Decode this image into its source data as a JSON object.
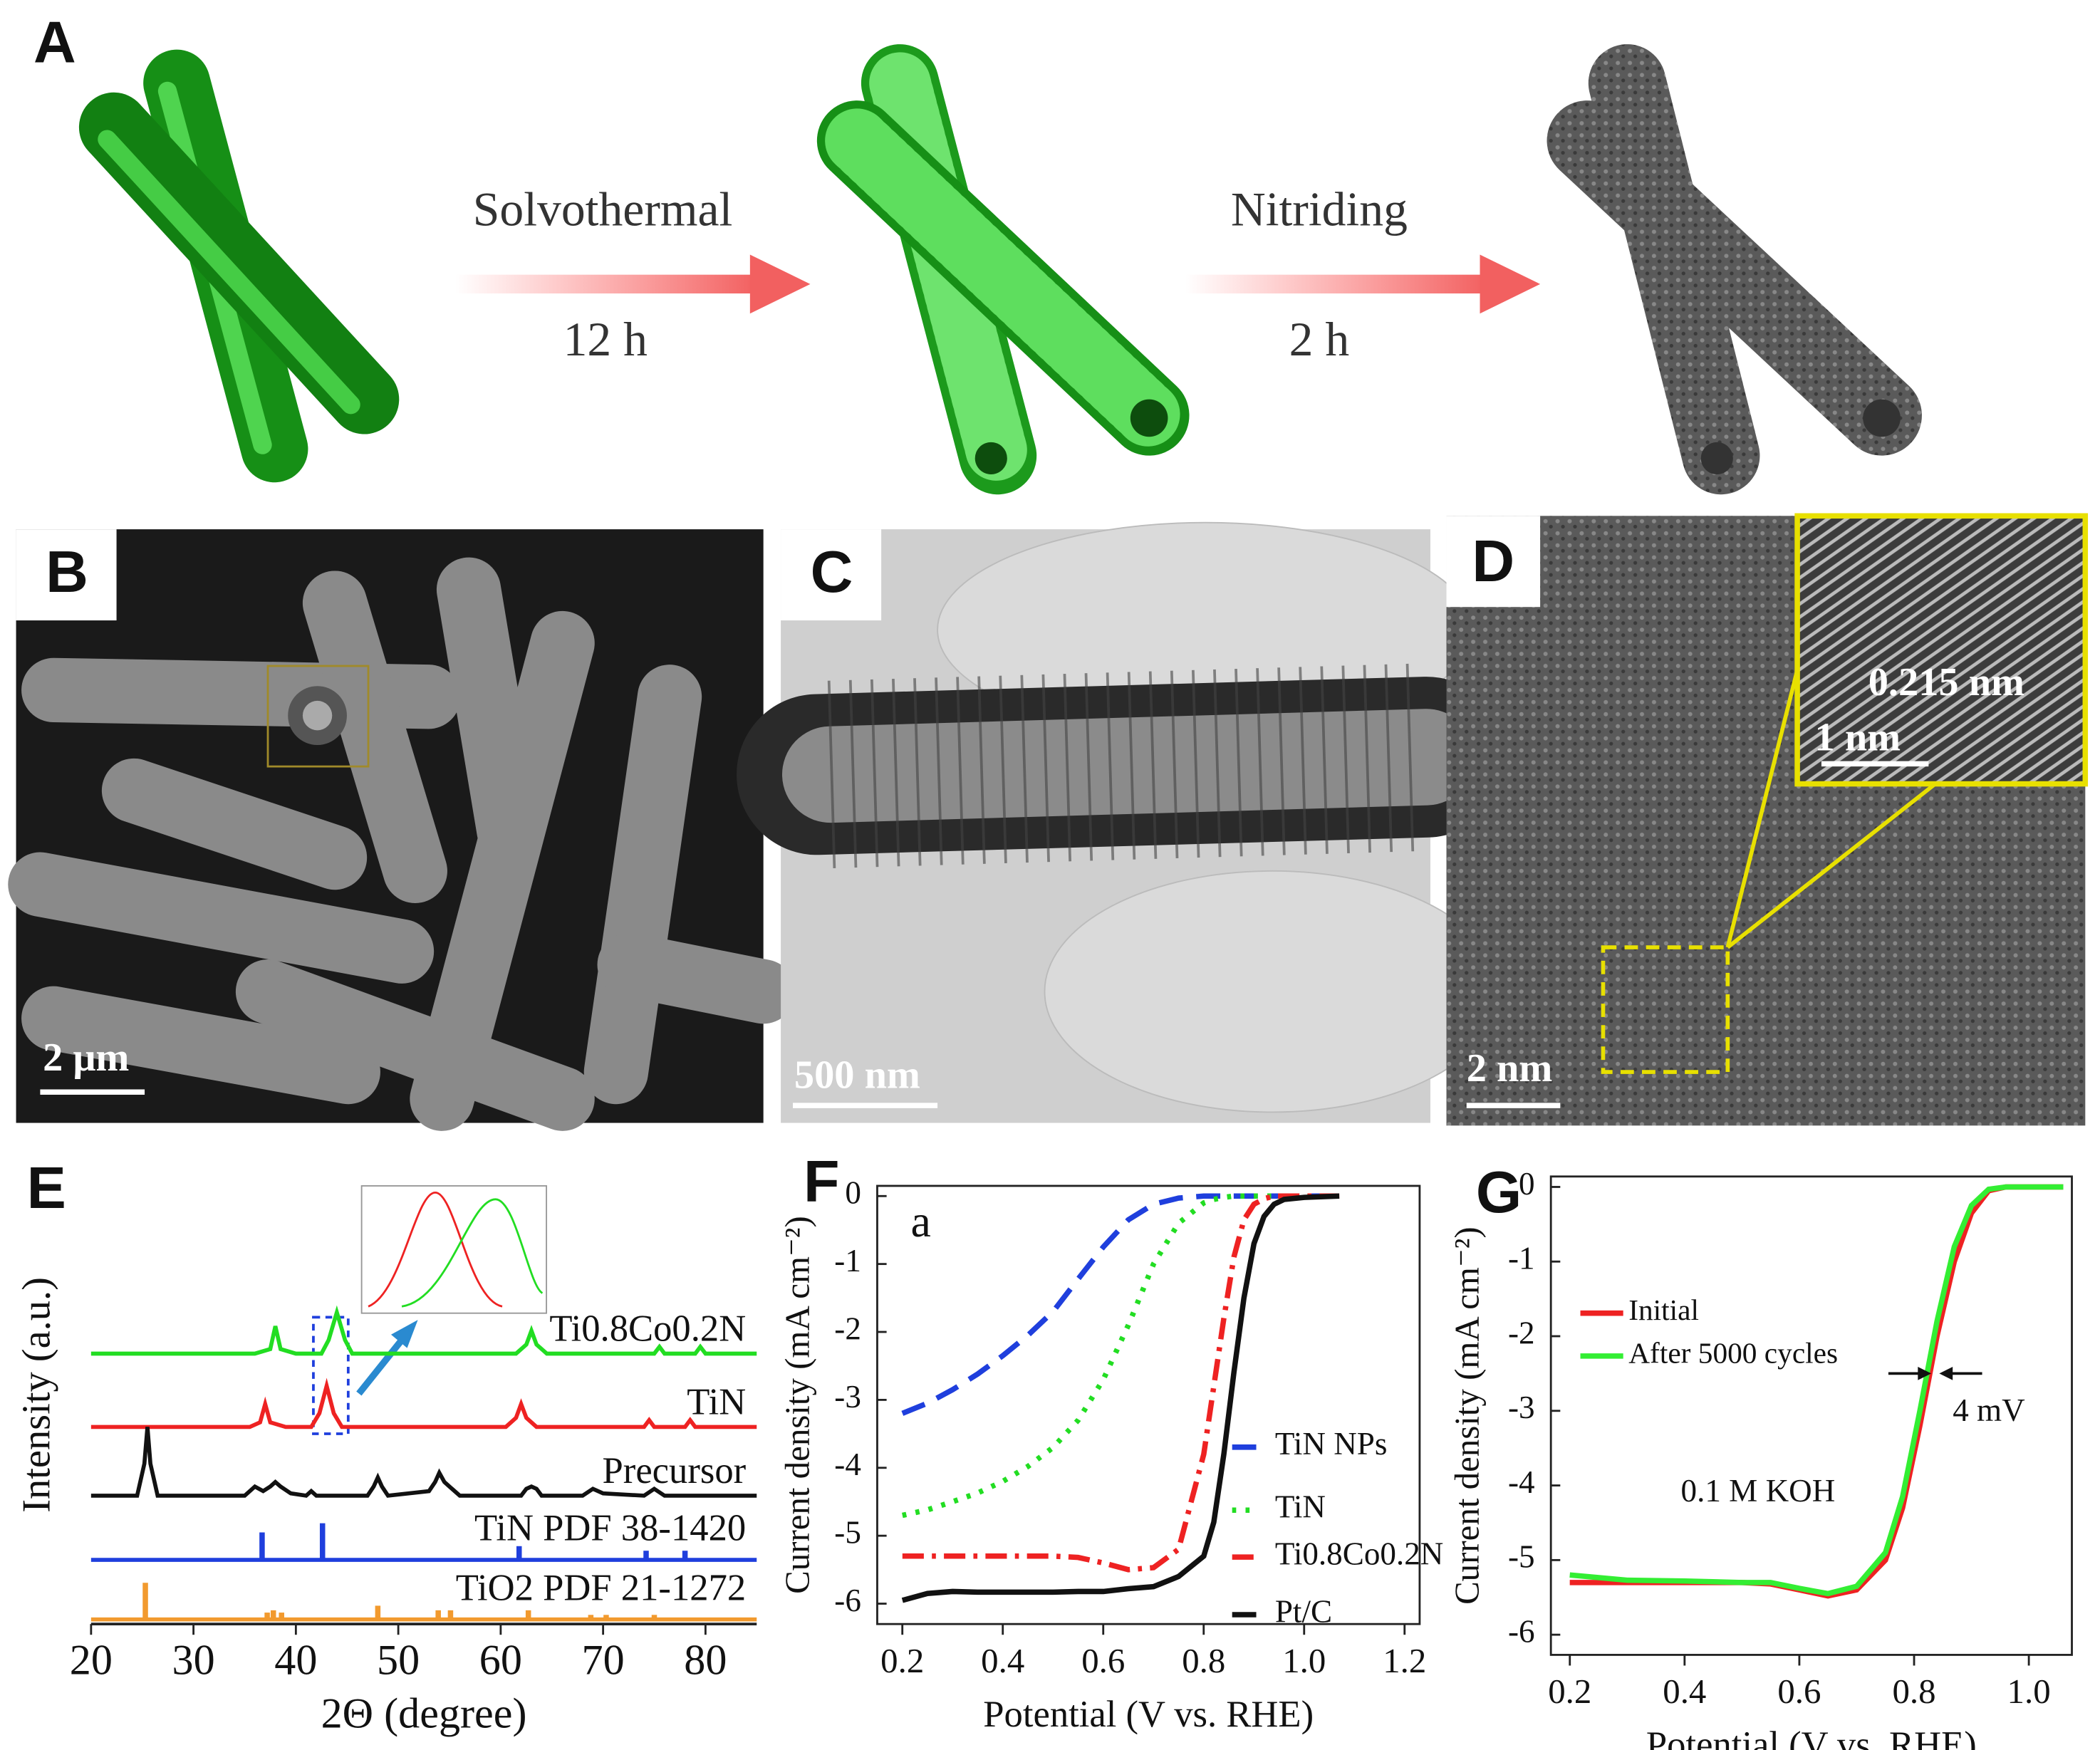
{
  "panels": {
    "A": {
      "label": "A",
      "step1": {
        "method": "Solvothermal",
        "time": "12 h"
      },
      "step2": {
        "method": "Nitriding",
        "time": "2 h"
      }
    },
    "B": {
      "label": "B",
      "scale_bar": "2 μm"
    },
    "C": {
      "label": "C",
      "scale_bar": "500 nm"
    },
    "D": {
      "label": "D",
      "scale_bar": "2 nm",
      "inset_spacing": "0.215 nm",
      "inset_scale_bar": "1 nm"
    }
  },
  "chart_data": [
    {
      "type": "line",
      "label": "E",
      "xlabel": "2Θ (degree)",
      "ylabel": "Intensity (a.u.)",
      "xlim": [
        20,
        85
      ],
      "xticks": [
        20,
        30,
        40,
        50,
        60,
        70,
        80
      ],
      "ylim": [
        0,
        100
      ],
      "series": [
        {
          "name": "Ti0.8Co0.2N",
          "color": "#22dd22",
          "style": "line",
          "x": [
            20,
            36,
            37.5,
            38,
            38.5,
            40,
            42.5,
            43.2,
            44,
            44.8,
            45.5,
            50,
            61.5,
            62.5,
            63,
            63.5,
            64.5,
            70,
            75,
            75.5,
            76,
            77,
            79,
            79.5,
            80,
            81,
            85
          ],
          "values": [
            59,
            59,
            60,
            65,
            60,
            59,
            59,
            62,
            68,
            62,
            59,
            59,
            59,
            61,
            64,
            61,
            59,
            59,
            59,
            60.5,
            59,
            59,
            59,
            60.5,
            59,
            59,
            59
          ]
        },
        {
          "name": "TiN",
          "color": "#ee2222",
          "style": "line",
          "x": [
            20,
            35.5,
            36.5,
            37,
            37.5,
            39,
            41.5,
            42.3,
            43,
            43.7,
            44.5,
            50,
            60.5,
            61.5,
            62,
            62.5,
            63.5,
            70,
            74,
            74.5,
            75,
            76,
            78,
            78.5,
            79,
            80,
            85
          ],
          "values": [
            43,
            43,
            44,
            48,
            44,
            43,
            43,
            46,
            52,
            46,
            43,
            43,
            43,
            45,
            48,
            45,
            43,
            43,
            43,
            44.5,
            43,
            43,
            43,
            44.5,
            43,
            43,
            43
          ]
        },
        {
          "name": "Precursor",
          "color": "#111111",
          "style": "line",
          "x": [
            20,
            24.5,
            25.2,
            25.5,
            25.8,
            26.5,
            28,
            35,
            36,
            36.8,
            37.5,
            38,
            38.5,
            39.5,
            41,
            41.5,
            42,
            47,
            47.6,
            48,
            48.4,
            49,
            53,
            53.6,
            54,
            54.5,
            55,
            56,
            62,
            62.5,
            63,
            63.5,
            64,
            68,
            69,
            70,
            74,
            75,
            76,
            80,
            85
          ],
          "values": [
            28,
            28,
            35,
            43,
            35,
            28,
            28,
            28,
            30,
            29,
            30,
            31,
            30,
            28.5,
            28,
            29,
            28,
            28,
            30,
            32,
            30,
            28,
            29,
            31,
            33,
            31,
            30,
            28,
            28,
            29.5,
            30,
            29.5,
            28,
            28,
            29.5,
            28.5,
            28,
            29.5,
            28,
            28,
            28
          ]
        },
        {
          "name": "TiN PDF 38-1420",
          "color": "#1f3fdd",
          "style": "stick",
          "baseline": 14,
          "x": [
            36.7,
            42.6,
            61.8,
            74.2,
            78
          ],
          "values": [
            20,
            22,
            17,
            16,
            16
          ]
        },
        {
          "name": "TiO2 PDF 21-1272",
          "color": "#f29a2e",
          "style": "stick",
          "baseline": 1,
          "x": [
            25.3,
            37.2,
            37.8,
            38.6,
            48,
            53.9,
            55.1,
            62.7,
            68.8,
            70.3,
            75
          ],
          "values": [
            9,
            2.5,
            3,
            2.5,
            4,
            3,
            3,
            3,
            2,
            2,
            2
          ]
        }
      ]
    },
    {
      "type": "line",
      "label": "F",
      "xlabel": "Potential (V vs. RHE)",
      "ylabel": "Current density (mA cm⁻²)",
      "annotation": "a",
      "xlim": [
        0.15,
        1.23
      ],
      "xticks": [
        0.2,
        0.4,
        0.6,
        0.8,
        {
          "value": 1,
          "label": "1.0"
        },
        1.2
      ],
      "ylim": [
        -6.3,
        0.15
      ],
      "yticks": [
        0,
        -1,
        -2,
        -3,
        -4,
        -5,
        -6
      ],
      "x": [
        0.2,
        0.25,
        0.3,
        0.35,
        0.4,
        0.45,
        0.5,
        0.55,
        0.6,
        0.65,
        0.7,
        0.75,
        0.8,
        0.82,
        0.84,
        0.86,
        0.88,
        0.9,
        0.92,
        0.94,
        0.96,
        1.0,
        1.07
      ],
      "series": [
        {
          "name": "TiN NPs",
          "color": "#1f3fdd",
          "dash": "dashed",
          "values": [
            -3.2,
            -3.05,
            -2.85,
            -2.62,
            -2.35,
            -2.05,
            -1.7,
            -1.22,
            -0.75,
            -0.35,
            -0.12,
            -0.03,
            0,
            0,
            0,
            0,
            0,
            0,
            0,
            0,
            0,
            0,
            0
          ]
        },
        {
          "name": "TiN",
          "color": "#22dd22",
          "dash": "dotted",
          "values": [
            -4.7,
            -4.62,
            -4.5,
            -4.37,
            -4.2,
            -3.98,
            -3.7,
            -3.3,
            -2.7,
            -1.9,
            -1.0,
            -0.4,
            -0.1,
            -0.05,
            -0.02,
            0,
            0,
            0,
            0,
            0,
            0,
            0,
            0
          ]
        },
        {
          "name": "Ti0.8Co0.2N",
          "color": "#ee2222",
          "dash": "dashdot",
          "values": [
            -5.3,
            -5.3,
            -5.3,
            -5.3,
            -5.3,
            -5.3,
            -5.3,
            -5.32,
            -5.4,
            -5.5,
            -5.47,
            -5.2,
            -3.8,
            -2.8,
            -1.8,
            -0.9,
            -0.35,
            -0.12,
            -0.04,
            0,
            0,
            0,
            0
          ]
        },
        {
          "name": "Pt/C",
          "color": "#111111",
          "dash": "solid",
          "values": [
            -5.95,
            -5.85,
            -5.82,
            -5.83,
            -5.83,
            -5.83,
            -5.83,
            -5.82,
            -5.82,
            -5.78,
            -5.75,
            -5.6,
            -5.3,
            -4.8,
            -3.8,
            -2.6,
            -1.5,
            -0.7,
            -0.3,
            -0.12,
            -0.05,
            -0.02,
            0
          ]
        }
      ]
    },
    {
      "type": "line",
      "label": "G",
      "xlabel": "Potential (V vs. RHE)",
      "ylabel": "Current density (mA cm⁻²)",
      "annotations": [
        "4 mV",
        "0.1 M KOH"
      ],
      "xlim": [
        0.167,
        1.075
      ],
      "xticks": [
        0.2,
        0.4,
        0.6,
        0.8,
        {
          "value": 1,
          "label": "1.0"
        }
      ],
      "ylim": [
        -6.27,
        0.14
      ],
      "yticks": [
        0,
        -1,
        -2,
        -3,
        -4,
        -5,
        -6
      ],
      "x": [
        0.2,
        0.3,
        0.4,
        0.5,
        0.55,
        0.6,
        0.65,
        0.7,
        0.75,
        0.78,
        0.81,
        0.84,
        0.87,
        0.9,
        0.93,
        0.96,
        1.0,
        1.06
      ],
      "series": [
        {
          "name": "Initial",
          "color": "#ee2222",
          "dash": "solid",
          "values": [
            -5.3,
            -5.3,
            -5.3,
            -5.3,
            -5.32,
            -5.4,
            -5.48,
            -5.4,
            -5.0,
            -4.3,
            -3.2,
            -2.0,
            -1.0,
            -0.35,
            -0.05,
            0,
            0,
            0
          ]
        },
        {
          "name": "After 5000 cycles",
          "color": "#33ee33",
          "dash": "solid",
          "values": [
            -5.2,
            -5.27,
            -5.28,
            -5.3,
            -5.3,
            -5.38,
            -5.45,
            -5.35,
            -4.9,
            -4.15,
            -3.0,
            -1.8,
            -0.8,
            -0.25,
            -0.03,
            0,
            0,
            0
          ]
        }
      ]
    }
  ]
}
